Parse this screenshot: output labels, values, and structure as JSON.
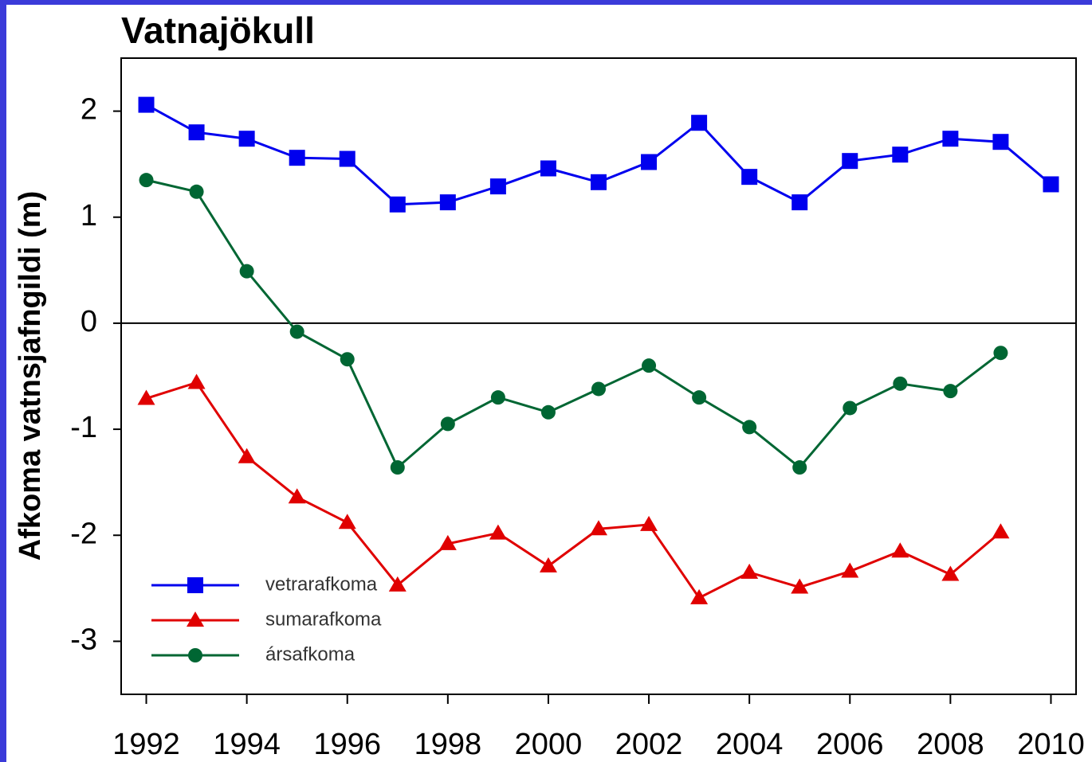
{
  "chart_data": {
    "type": "line",
    "title": "Vatnajökull",
    "y_label": "Afkoma vatnsjafngildi (m)",
    "x": [
      1992,
      1993,
      1994,
      1995,
      1996,
      1997,
      1998,
      1999,
      2000,
      2001,
      2002,
      2003,
      2004,
      2005,
      2006,
      2007,
      2008,
      2009,
      2010
    ],
    "series": [
      {
        "name": "vetrarafkoma",
        "color": "#0000ee",
        "marker": "square",
        "values": [
          2.06,
          1.8,
          1.74,
          1.56,
          1.55,
          1.12,
          1.14,
          1.29,
          1.46,
          1.33,
          1.52,
          1.89,
          1.38,
          1.14,
          1.53,
          1.59,
          1.74,
          1.71,
          1.31
        ]
      },
      {
        "name": "sumarafkoma",
        "color": "#e00000",
        "marker": "triangle",
        "values": [
          -0.71,
          -0.56,
          -1.26,
          -1.64,
          -1.88,
          -2.47,
          -2.08,
          -1.98,
          -2.29,
          -1.94,
          -1.9,
          -2.59,
          -2.35,
          -2.49,
          -2.34,
          -2.15,
          -2.37,
          -1.97,
          null
        ]
      },
      {
        "name": "ársafkoma",
        "color": "#006633",
        "marker": "circle",
        "values": [
          1.35,
          1.24,
          0.49,
          -0.08,
          -0.34,
          -1.36,
          -0.95,
          -0.7,
          -0.84,
          -0.62,
          -0.4,
          -0.7,
          -0.98,
          -1.36,
          -0.8,
          -0.57,
          -0.64,
          -0.28,
          null
        ]
      }
    ],
    "xlim": [
      1991.5,
      2010.5
    ],
    "xticks": [
      1992,
      1994,
      1996,
      1998,
      2000,
      2002,
      2004,
      2006,
      2008,
      2010
    ],
    "ylim": [
      -3.5,
      2.5
    ],
    "yticks": [
      -3,
      -2,
      -1,
      0,
      1,
      2
    ],
    "zero_line": true,
    "legend": "lower left"
  }
}
